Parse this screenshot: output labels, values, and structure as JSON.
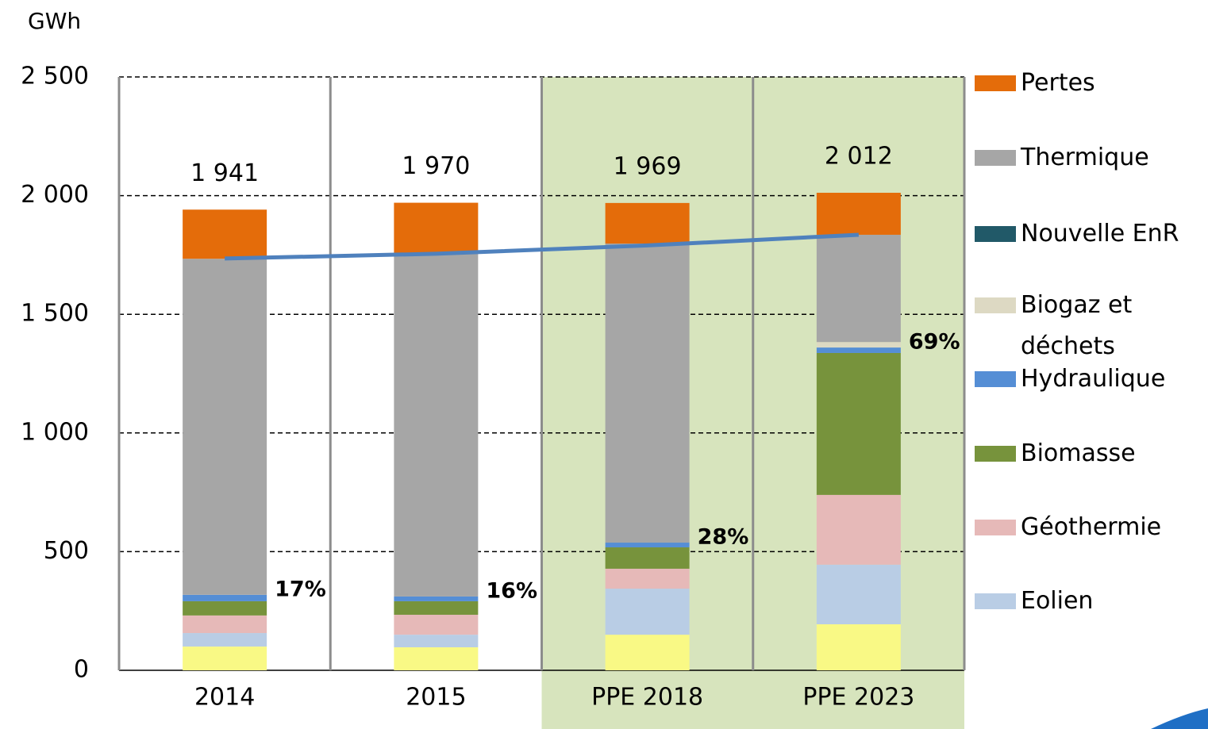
{
  "chart_data": {
    "type": "bar",
    "stacked": true,
    "y_label": "GWh",
    "categories": [
      "2014",
      "2015",
      "PPE 2018",
      "PPE 2023"
    ],
    "series": [
      {
        "color": "#f9f985",
        "values": [
          100,
          97,
          150,
          194
        ]
      },
      {
        "name": "Eolien",
        "color": "#b9cde5",
        "values": [
          57,
          53,
          194,
          251
        ]
      },
      {
        "name": "Géothermie",
        "color": "#e6b9b8",
        "values": [
          74,
          84,
          84,
          294
        ]
      },
      {
        "name": "Biomasse",
        "color": "#77933c",
        "values": [
          60,
          57,
          90,
          598
        ]
      },
      {
        "name": "Hydraulique",
        "color": "#558ed5",
        "values": [
          27,
          20,
          20,
          23
        ]
      },
      {
        "name": "Biogaz et déchets",
        "color": "#ddd9c3",
        "values": [
          0,
          0,
          0,
          23
        ]
      },
      {
        "name": "Nouvelle EnR",
        "color": "#215968",
        "values": [
          0,
          0,
          0,
          0
        ]
      },
      {
        "name": "Thermique",
        "color": "#a6a6a6",
        "values": [
          1416,
          1448,
          1260,
          452
        ]
      },
      {
        "name": "Pertes",
        "color": "#e46c0a",
        "values": [
          207,
          211,
          171,
          177
        ]
      }
    ],
    "line": {
      "color": "#4f81bd",
      "values": [
        1735,
        1755,
        1790,
        1835
      ]
    },
    "totals": [
      1941,
      1970,
      1969,
      2012
    ],
    "total_labels": [
      "1 941",
      "1 970",
      "1 969",
      "2 012"
    ],
    "share_labels": [
      "17%",
      "16%",
      "28%",
      "69%"
    ],
    "highlight": {
      "from_index": 2,
      "color": "#d7e4bd"
    },
    "ylim": [
      0,
      2500
    ],
    "yticks": [
      0,
      500,
      {
        "value": 1000,
        "label": "1 000"
      },
      {
        "value": 1500,
        "label": "1 500"
      },
      {
        "value": 2000,
        "label": "2 000"
      },
      {
        "value": 2500,
        "label": "2 500"
      }
    ],
    "grid": true
  }
}
